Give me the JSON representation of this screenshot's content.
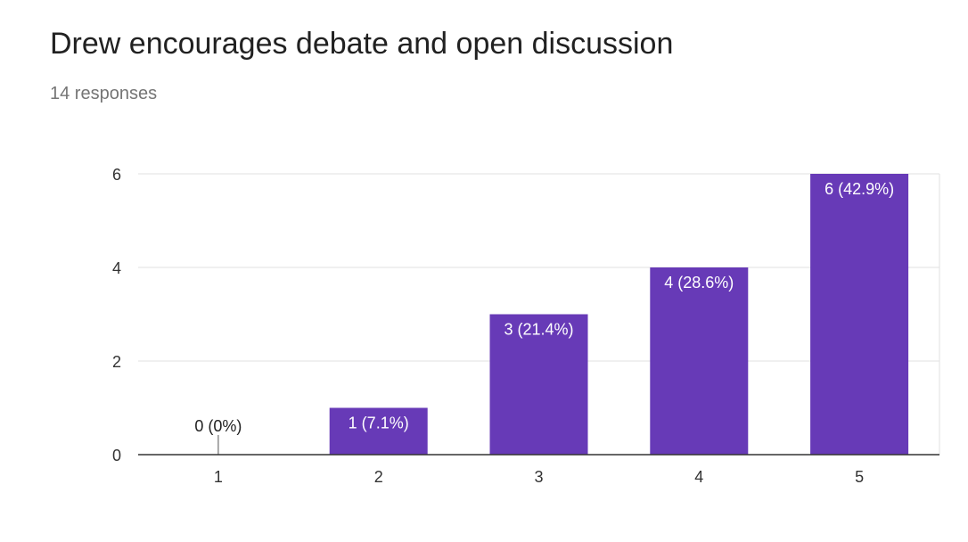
{
  "header": {
    "title": "Drew encourages debate and open discussion",
    "subtitle": "14 responses"
  },
  "colors": {
    "bar": "#673ab7",
    "grid": "#e0e0e0",
    "axis": "#333333",
    "title": "#212121",
    "subtitle": "#757575",
    "bar_label_inside": "#ffffff",
    "bar_label_outside": "#222222"
  },
  "chart_data": {
    "type": "bar",
    "categories": [
      "1",
      "2",
      "3",
      "4",
      "5"
    ],
    "values": [
      0,
      1,
      3,
      4,
      6
    ],
    "data_labels": [
      "0 (0%)",
      "1 (7.1%)",
      "3 (21.4%)",
      "4 (28.6%)",
      "6 (42.9%)"
    ],
    "title": "Drew encourages debate and open discussion",
    "subtitle": "14 responses",
    "xlabel": "",
    "ylabel": "",
    "ylim": [
      0,
      6
    ],
    "yticks": [
      0,
      2,
      4,
      6
    ],
    "grid": true,
    "legend": "none"
  }
}
